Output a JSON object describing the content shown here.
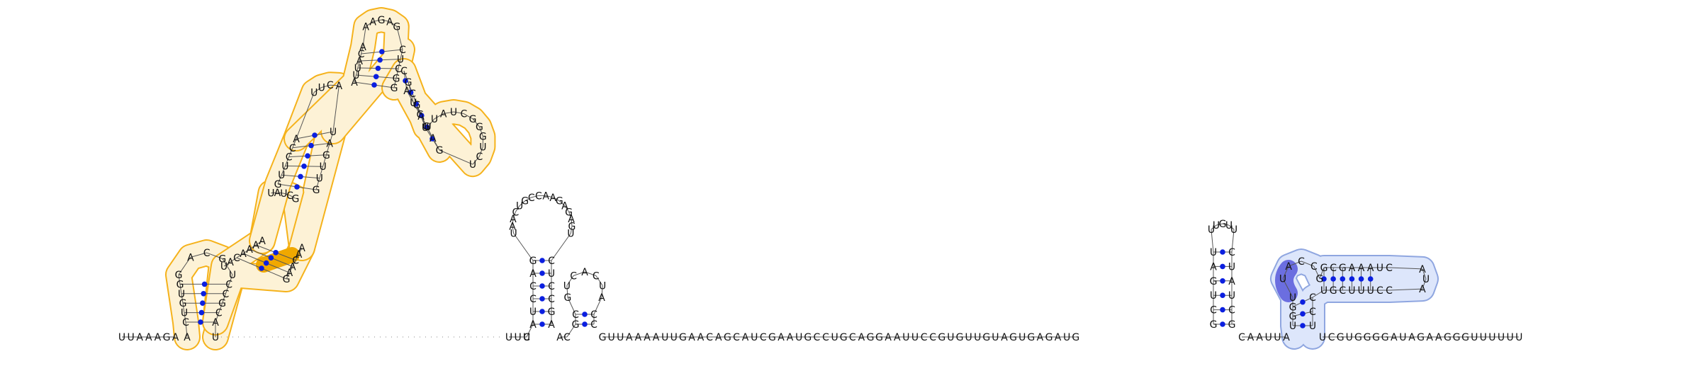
{
  "figure": {
    "colors": {
      "background": "#ffffff",
      "text": "#111111",
      "base_pair": "#0b1fe0",
      "orange_outline": "#f5b21b",
      "orange_fill": "#fdf2d6",
      "orange_strong": "#f0a800",
      "blue_outline": "#8fa6e0",
      "blue_fill": "#dde6fb",
      "purple_strong": "#6b6ee0"
    },
    "strands": {
      "leader": "UUAAAGA",
      "spacer": "UUC",
      "linker": "GUUAAAAUUGAACAGCAUCGAAUGCCUGCAGGAAUUCCGUGUUGUAGUGAGAUG",
      "mid": "CAAUUA",
      "tail": "UCGUGGGGAUAGAAGGGUUUUUU"
    },
    "hairpin1": {
      "stem_5p": "AUCCAG",
      "loop": "UAACUGCCAAGAGAGU",
      "stem_3p": "CUCCGA"
    },
    "hairpin2": {
      "stem_5p": "GC",
      "loop": "GUCACUA",
      "stem_3p": "CC"
    },
    "hairpin3": {
      "stem_5p": "GCUGAU",
      "loop": "UUGUU",
      "stem_3p": "CUAUCG"
    },
    "domain_big": {
      "h1_5p": "CUGUGG",
      "h1_loop": "ACG",
      "h1_3p": "UCCGCA",
      "il1_5p": "UACAAAA",
      "il1_loop": "UAUCG",
      "il1_3p": "AACAAG",
      "h2_5p": "GUUCCA",
      "h2_loop": "UUCA",
      "h2_3p": "UAGUUG",
      "h3_5p": "AUUACA",
      "h3_loop": "AAGAG",
      "h3_3p": "CUCGG",
      "h4_5p": "CGCGAU",
      "h4_loop": "UUAUCGGGUCU",
      "h4_3p": "GAGCUA"
    },
    "domain_small": {
      "stem_5p": "UGGU",
      "ring": "UACCG",
      "arm_5p": "GCGAAAUC",
      "arm_loop": "AUA",
      "arm_3p": "CCUUUCGU",
      "stem_3p": "CCU"
    }
  }
}
